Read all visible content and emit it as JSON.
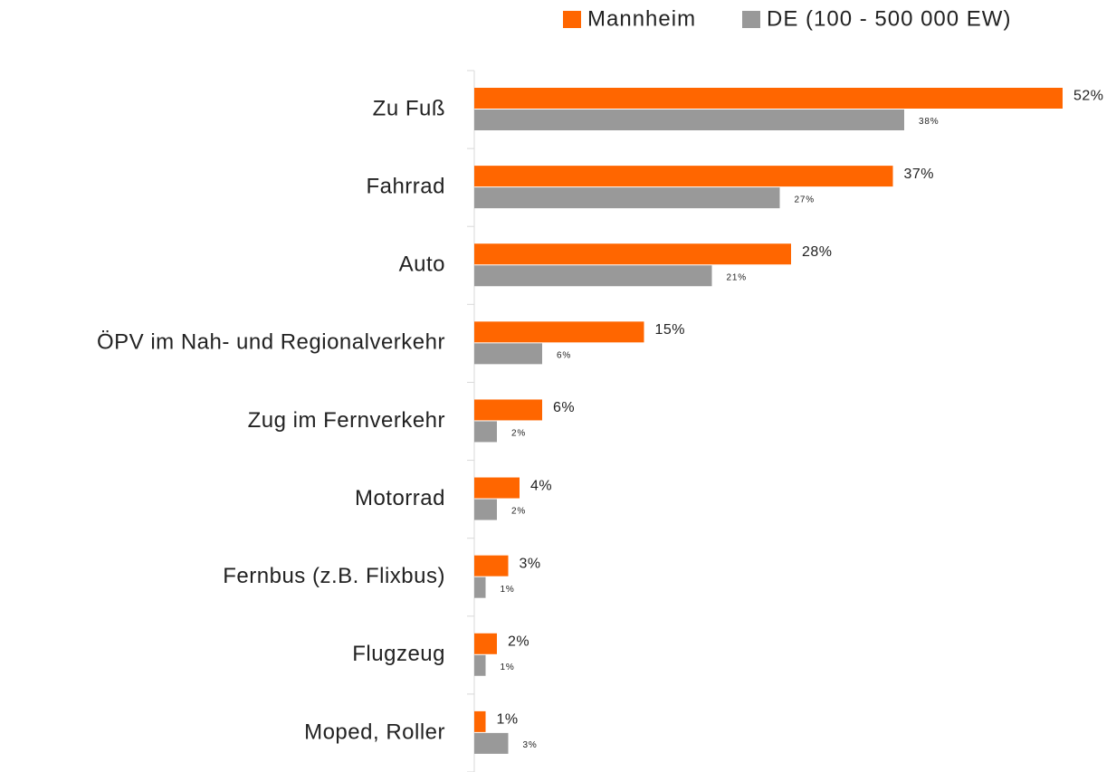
{
  "chart_data": {
    "type": "hbar",
    "categories": [
      "Zu Fuß",
      "Fahrrad",
      "Auto",
      "ÖPV im Nah- und Regionalverkehr",
      "Zug im Fernverkehr",
      "Motorrad",
      "Fernbus (z.B. Flixbus)",
      "Flugzeug",
      "Moped, Roller"
    ],
    "series": [
      {
        "name": "Mannheim",
        "color": "#ff6600",
        "values": [
          52,
          37,
          28,
          15,
          6,
          4,
          3,
          2,
          1
        ],
        "value_labels": [
          "52%",
          "37%",
          "28%",
          "15%",
          "6%",
          "4%",
          "3%",
          "2%",
          "1%"
        ]
      },
      {
        "name": "DE (100 - 500 000 EW)",
        "color": "#999999",
        "values": [
          38,
          27,
          21,
          6,
          2,
          2,
          1,
          1,
          3
        ],
        "value_labels": [
          "38%",
          "27%",
          "21%",
          "6%",
          "2%",
          "2%",
          "1%",
          "1%",
          "3%"
        ]
      }
    ],
    "xlim": [
      0,
      56
    ],
    "legend": "top"
  }
}
